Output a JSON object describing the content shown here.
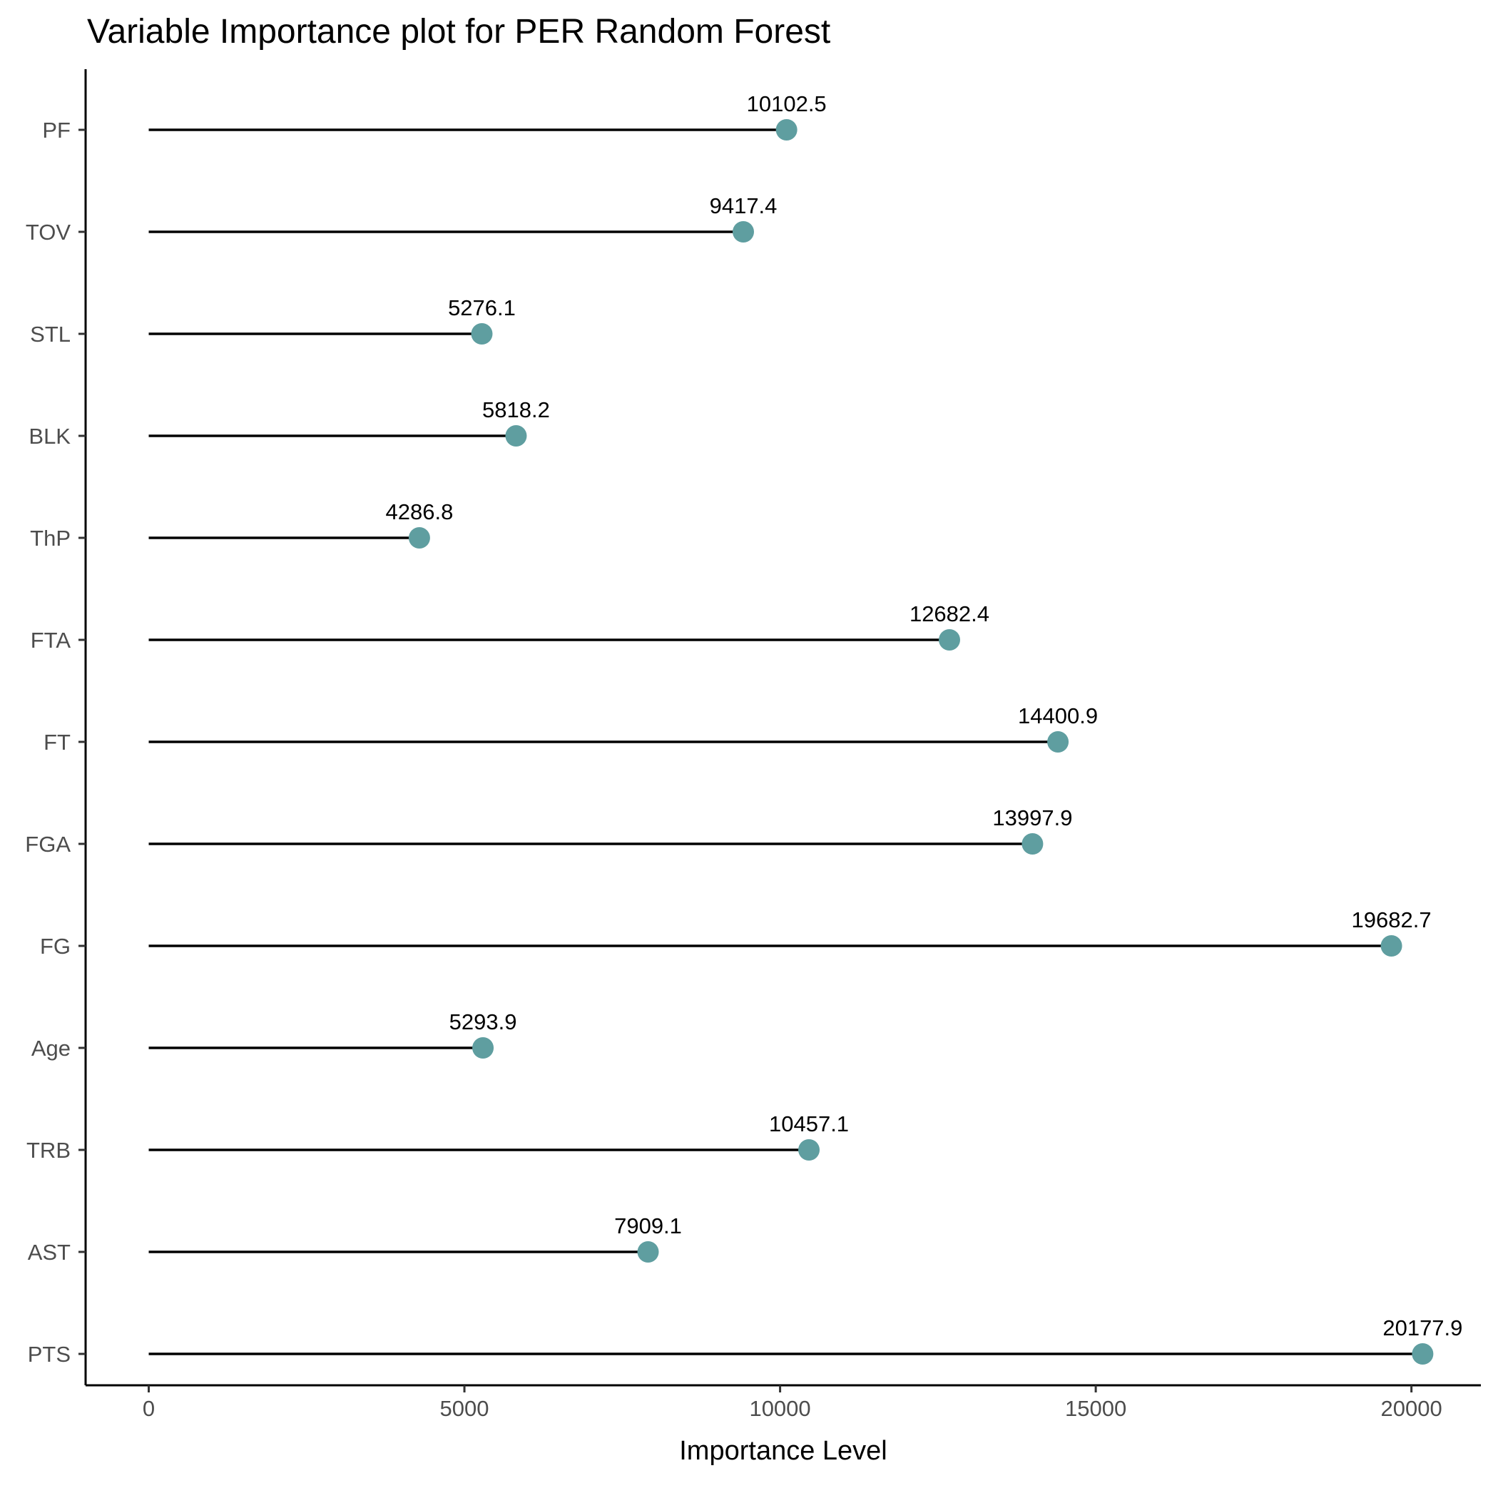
{
  "chart_data": {
    "type": "lollipop",
    "title": "Variable Importance plot for PER Random Forest",
    "xlabel": "Importance Level",
    "ylabel": "",
    "xlim": [
      -1000,
      21100
    ],
    "xticks": [
      0,
      5000,
      10000,
      15000,
      20000
    ],
    "xtick_labels": [
      "0",
      "5000",
      "10000",
      "15000",
      "20000"
    ],
    "categories": [
      "PF",
      "TOV",
      "STL",
      "BLK",
      "ThP",
      "FTA",
      "FT",
      "FGA",
      "FG",
      "Age",
      "TRB",
      "AST",
      "PTS"
    ],
    "values": [
      10102.5,
      9417.4,
      5276.1,
      5818.2,
      4286.8,
      12682.4,
      14400.9,
      13997.9,
      19682.7,
      5293.9,
      10457.1,
      7909.1,
      20177.9
    ],
    "value_labels": [
      "10102.5",
      "9417.4",
      "5276.1",
      "5818.2",
      "4286.8",
      "12682.4",
      "14400.9",
      "13997.9",
      "19682.7",
      "5293.9",
      "10457.1",
      "7909.1",
      "20177.9"
    ],
    "point_color": "#5f9ea0",
    "line_color": "#000000",
    "grid": false,
    "legend": "none"
  }
}
